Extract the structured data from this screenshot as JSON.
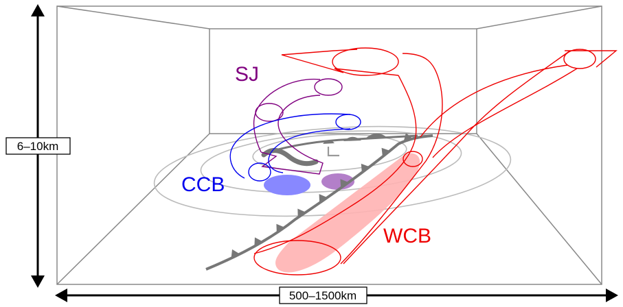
{
  "scale_labels": {
    "vertical": "6–10km",
    "horizontal": "500–1500km"
  },
  "airstreams": {
    "sj": {
      "label": "SJ",
      "color": "#800080"
    },
    "ccb": {
      "label": "CCB",
      "color": "#0000ee"
    },
    "wcb": {
      "label": "WCB",
      "color": "#ee0000"
    }
  },
  "low_pressure_symbol": "L",
  "colors": {
    "box": "#888888",
    "isobar": "#bbbbbb",
    "front": "#777777",
    "ccb_fill": "#8888ff",
    "sj_fill": "#b37fc9",
    "wcb_fill": "#ffb3b3"
  }
}
